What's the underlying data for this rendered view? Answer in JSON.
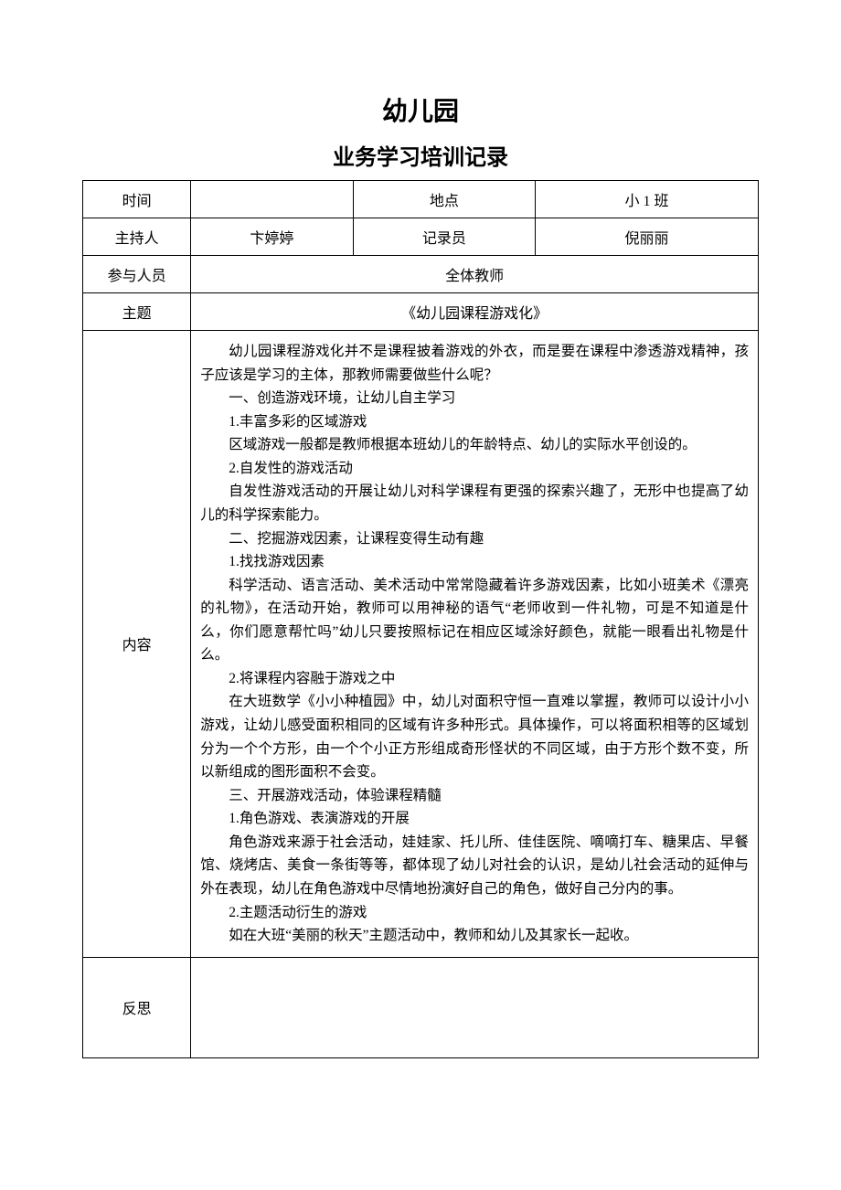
{
  "title_main": "幼儿园",
  "title_sub": "业务学习培训记录",
  "labels": {
    "time": "时间",
    "location": "地点",
    "host": "主持人",
    "recorder": "记录员",
    "participants": "参与人员",
    "subject": "主题",
    "content": "内容",
    "reflection": "反思"
  },
  "values": {
    "time": "",
    "location": "小 1 班",
    "host": "卞婷婷",
    "recorder": "倪丽丽",
    "participants": "全体教师",
    "subject": "《幼儿园课程游戏化》",
    "reflection": ""
  },
  "content_lines": [
    {
      "text": "幼儿园课程游戏化并不是课程披着游戏的外衣，而是要在课程中渗透游戏精神，孩子应该是学习的主体，那教师需要做些什么呢？",
      "indent": true
    },
    {
      "text": "一、创造游戏环境，让幼儿自主学习",
      "indent": true
    },
    {
      "text": "1.丰富多彩的区域游戏",
      "indent": true
    },
    {
      "text": "区域游戏一般都是教师根据本班幼儿的年龄特点、幼儿的实际水平创设的。",
      "indent": true
    },
    {
      "text": "2.自发性的游戏活动",
      "indent": true
    },
    {
      "text": "自发性游戏活动的开展让幼儿对科学课程有更强的探索兴趣了，无形中也提高了幼儿的科学探索能力。",
      "indent": true
    },
    {
      "text": "二、挖掘游戏因素，让课程变得生动有趣",
      "indent": true
    },
    {
      "text": "1.找找游戏因素",
      "indent": true
    },
    {
      "text": "科学活动、语言活动、美术活动中常常隐藏着许多游戏因素，比如小班美术《漂亮的礼物》，在活动开始，教师可以用神秘的语气“老师收到一件礼物，可是不知道是什么，你们愿意帮忙吗”幼儿只要按照标记在相应区域涂好颜色，就能一眼看出礼物是什么。",
      "indent": true
    },
    {
      "text": "2.将课程内容融于游戏之中",
      "indent": true
    },
    {
      "text": "在大班数学《小小种植园》中，幼儿对面积守恒一直难以掌握，教师可以设计小小游戏，让幼儿感受面积相同的区域有许多种形式。具体操作，可以将面积相等的区域划分为一个个方形，由一个个小正方形组成奇形怪状的不同区域，由于方形个数不变，所以新组成的图形面积不会变。",
      "indent": true
    },
    {
      "text": "三、开展游戏活动，体验课程精髓",
      "indent": true
    },
    {
      "text": "1.角色游戏、表演游戏的开展",
      "indent": true
    },
    {
      "text": "角色游戏来源于社会活动，娃娃家、托儿所、佳佳医院、嘀嘀打车、糖果店、早餐馆、烧烤店、美食一条街等等，都体现了幼儿对社会的认识，是幼儿社会活动的延伸与外在表现，幼儿在角色游戏中尽情地扮演好自己的角色，做好自己分内的事。",
      "indent": true
    },
    {
      "text": "2.主题活动衍生的游戏",
      "indent": true
    },
    {
      "text": "如在大班“美丽的秋天”主题活动中，教师和幼儿及其家长一起收。",
      "indent": true
    }
  ],
  "styling": {
    "page_bg": "#ffffff",
    "text_color": "#000000",
    "border_color": "#000000",
    "title_main_fontsize": 28,
    "title_sub_fontsize": 24,
    "cell_fontsize": 16,
    "content_fontsize": 15.5,
    "line_height": 1.65,
    "font_family": "SimSun"
  }
}
